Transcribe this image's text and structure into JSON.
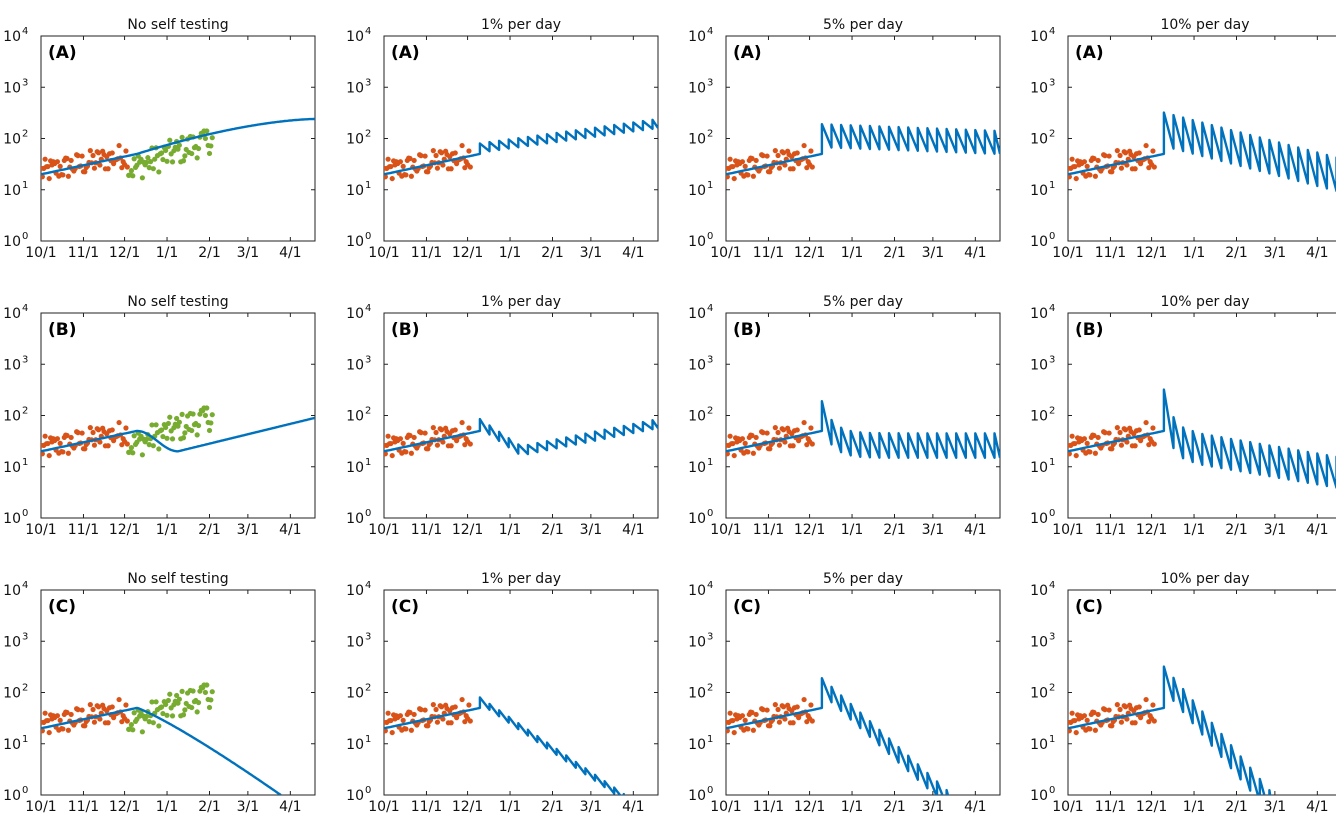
{
  "chart_data": {
    "type": "scatter",
    "layout": {
      "rows": 3,
      "cols": 4
    },
    "x_tick_labels": [
      "10/1",
      "11/1",
      "12/1",
      "1/1",
      "2/1",
      "3/1",
      "4/1"
    ],
    "x_tick_days": [
      0,
      31,
      61,
      92,
      123,
      151,
      182
    ],
    "x_range_days": [
      0,
      200
    ],
    "y_scale": "log",
    "y_range": [
      1,
      10000
    ],
    "y_ticks": [
      1,
      10,
      100,
      1000,
      10000
    ],
    "y_tick_labels": [
      {
        "base": "10",
        "exp": "0"
      },
      {
        "base": "10",
        "exp": "1"
      },
      {
        "base": "10",
        "exp": "2"
      },
      {
        "base": "10",
        "exp": "3"
      },
      {
        "base": "10",
        "exp": "4"
      }
    ],
    "column_titles": [
      "No self testing",
      "1% per day",
      "5% per day",
      "10% per day"
    ],
    "row_labels": [
      "(A)",
      "(B)",
      "(C)"
    ],
    "colors": {
      "model_line": "#0072bd",
      "observed_pre": "#d95319",
      "observed_post": "#77ac30"
    },
    "observed_before_dec": {
      "day_range": [
        0,
        63
      ],
      "y_start": 22,
      "y_end": 48,
      "scatter_factor": 0.4
    },
    "observed_after_dec": {
      "day_range": [
        64,
        125
      ],
      "y_min": 13,
      "y_max": 140
    },
    "model_description": {
      "intervention_start_day": 70,
      "periodic_dip_period_days": 7,
      "rows": {
        "A": [
          {
            "start": 20,
            "at_intervention": 50,
            "end_at_day_200": 240
          },
          {
            "jump_to": 80,
            "end_at_day_200": 240,
            "dip_depth": 1.5
          },
          {
            "jump_to": 190,
            "end_at_day_200": 140,
            "dip_depth": 2.8
          },
          {
            "jump_to": 320,
            "end_at_day_200": 40,
            "dip_depth": 4.5
          }
        ],
        "B": [
          {
            "peak": 55,
            "trough_day": 100,
            "trough": 20,
            "end_at_day_200": 90
          },
          {
            "jump_to": 85,
            "trough": 25,
            "end_at_day_200": 85,
            "dip_depth": 1.5
          },
          {
            "jump_to": 190,
            "plateau": 45,
            "dip_depth": 3.0
          },
          {
            "jump_to": 320,
            "end_at_day_200": 15,
            "dip_depth": 4.0
          }
        ],
        "C": [
          {
            "peak": 55,
            "reaches_1_at_day": 175
          },
          {
            "jump_to": 80,
            "reaches_1_at_day": 176,
            "dip_depth": 1.3
          },
          {
            "jump_to": 190,
            "reaches_1_at_day": 165,
            "dip_depth": 2.0
          },
          {
            "jump_to": 320,
            "reaches_1_at_day": 150,
            "dip_depth": 2.8
          }
        ]
      }
    }
  }
}
